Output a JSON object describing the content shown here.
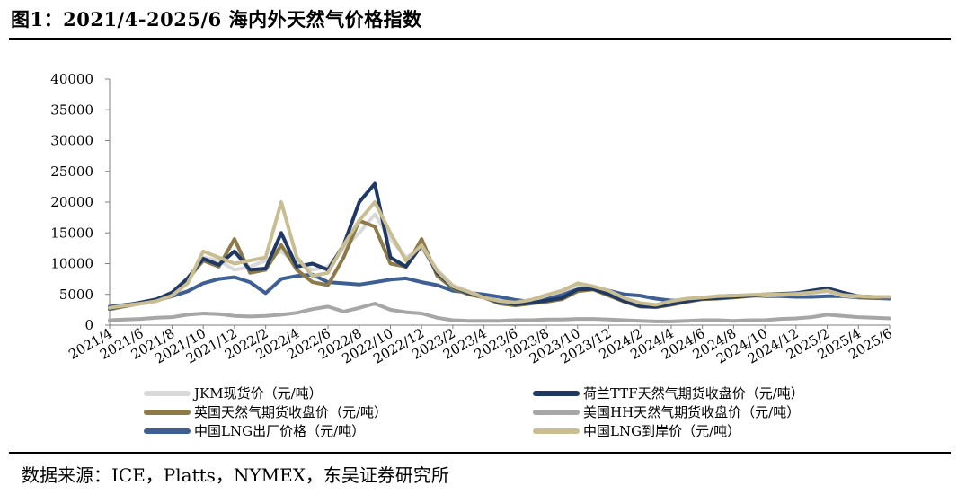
{
  "header": {
    "title": "图1：2021/4-2025/6 海内外天然气价格指数"
  },
  "footer": {
    "source": "数据来源：ICE，Platts，NYMEX，东吴证券研究所"
  },
  "colors": {
    "jkm": "#d9d9d9",
    "ttf": "#1f3864",
    "nbp": "#8c7b48",
    "hh": "#a6a6a6",
    "lng_ex": "#3e5f93",
    "lng_import": "#c9bd92"
  },
  "chart_data": {
    "type": "line",
    "ylim": [
      0,
      40000
    ],
    "yticks": [
      "0",
      "5000",
      "10000",
      "15000",
      "20000",
      "25000",
      "30000",
      "35000",
      "40000"
    ],
    "xticks": [
      "2021/4",
      "2021/6",
      "2021/8",
      "2021/10",
      "2021/12",
      "2022/2",
      "2022/4",
      "2022/6",
      "2022/8",
      "2022/10",
      "2022/12",
      "2023/2",
      "2023/4",
      "2023/6",
      "2023/8",
      "2023/10",
      "2023/12",
      "2024/2",
      "2024/4",
      "2024/6",
      "2024/8",
      "2024/10",
      "2024/12",
      "2025/2",
      "2025/4",
      "2025/6"
    ],
    "x": [
      "2021/4",
      "2021/5",
      "2021/6",
      "2021/7",
      "2021/8",
      "2021/9",
      "2021/10",
      "2021/11",
      "2021/12",
      "2022/1",
      "2022/2",
      "2022/3",
      "2022/4",
      "2022/5",
      "2022/6",
      "2022/7",
      "2022/8",
      "2022/9",
      "2022/10",
      "2022/11",
      "2022/12",
      "2023/1",
      "2023/2",
      "2023/3",
      "2023/4",
      "2023/5",
      "2023/6",
      "2023/7",
      "2023/8",
      "2023/9",
      "2023/10",
      "2023/11",
      "2023/12",
      "2024/1",
      "2024/2",
      "2024/3",
      "2024/4",
      "2024/5",
      "2024/6",
      "2024/7",
      "2024/8",
      "2024/9",
      "2024/10",
      "2024/11",
      "2024/12",
      "2025/1",
      "2025/2",
      "2025/3",
      "2025/4",
      "2025/5",
      "2025/6"
    ],
    "series": [
      {
        "key": "lng_ex",
        "name": "中国LNG出厂价格（元/吨）",
        "values": [
          3000,
          3300,
          3600,
          4000,
          4700,
          5500,
          6800,
          7500,
          7800,
          7000,
          5200,
          7500,
          8000,
          8200,
          7000,
          6800,
          6600,
          7000,
          7400,
          7600,
          7000,
          6500,
          5600,
          5300,
          5000,
          4600,
          4100,
          3800,
          4300,
          5000,
          5800,
          6100,
          5600,
          5000,
          4800,
          4300,
          4000,
          4100,
          4400,
          4700,
          4800,
          4800,
          4700,
          4700,
          4600,
          4600,
          4700,
          4700,
          4500,
          4400,
          4300
        ]
      },
      {
        "key": "hh",
        "name": "美国HH天然气期货收盘价（元/吨）",
        "values": [
          800,
          900,
          1000,
          1200,
          1300,
          1700,
          1900,
          1800,
          1500,
          1400,
          1500,
          1700,
          2000,
          2600,
          3000,
          2200,
          2800,
          3500,
          2500,
          2100,
          1900,
          1200,
          800,
          700,
          700,
          700,
          800,
          800,
          900,
          900,
          1000,
          1000,
          900,
          800,
          700,
          600,
          600,
          700,
          800,
          800,
          700,
          800,
          800,
          1000,
          1100,
          1300,
          1700,
          1500,
          1300,
          1200,
          1100
        ]
      },
      {
        "key": "jkm",
        "name": "JKM现货价（元/吨）",
        "values": [
          2500,
          3000,
          3500,
          4000,
          5000,
          7000,
          11000,
          10500,
          9000,
          9500,
          10500,
          12000,
          10000,
          9000,
          9500,
          12500,
          15000,
          18000,
          14000,
          11000,
          12500,
          9000,
          6500,
          5500,
          4500,
          3800,
          3600,
          4000,
          4800,
          5500,
          6500,
          6200,
          5500,
          4300,
          3500,
          3200,
          3800,
          4200,
          4500,
          4600,
          4600,
          4700,
          4800,
          4900,
          5000,
          5200,
          5500,
          4800,
          4600,
          4600,
          4500
        ]
      },
      {
        "key": "nbp",
        "name": "英国天然气期货收盘价（元/吨）",
        "values": [
          2600,
          3100,
          3600,
          4100,
          5200,
          7500,
          10500,
          9500,
          14000,
          8500,
          9000,
          13000,
          9000,
          7000,
          6500,
          11000,
          17000,
          16000,
          10000,
          9500,
          14000,
          8000,
          6000,
          5000,
          4500,
          3500,
          3200,
          3500,
          3800,
          4200,
          5500,
          5800,
          4800,
          3800,
          3000,
          2900,
          3300,
          3800,
          4200,
          4300,
          4500,
          4700,
          4900,
          5000,
          5100,
          5500,
          5900,
          5200,
          4600,
          4500,
          4400
        ]
      },
      {
        "key": "ttf",
        "name": "荷兰TTF天然气期货收盘价（元/吨）",
        "values": [
          2700,
          3200,
          3700,
          4200,
          5300,
          7600,
          10800,
          9800,
          12000,
          9000,
          9200,
          15000,
          9500,
          10000,
          9000,
          13000,
          20000,
          23000,
          11000,
          9500,
          13000,
          8500,
          6200,
          5200,
          4600,
          3700,
          3400,
          3600,
          4000,
          4400,
          5800,
          5900,
          5000,
          3900,
          3100,
          3000,
          3400,
          3900,
          4300,
          4400,
          4600,
          4800,
          5000,
          5100,
          5200,
          5600,
          6000,
          5300,
          4700,
          4600,
          4500
        ]
      },
      {
        "key": "lng_import",
        "name": "中国LNG到岸价（元/吨）",
        "values": [
          2800,
          3200,
          3500,
          3900,
          4800,
          6800,
          12000,
          11000,
          10000,
          10500,
          11000,
          20000,
          11000,
          8000,
          8500,
          13000,
          17000,
          20000,
          15000,
          10500,
          13000,
          8800,
          6300,
          5400,
          4500,
          3900,
          3700,
          4100,
          4900,
          5600,
          6800,
          6300,
          5600,
          4400,
          3600,
          3300,
          3900,
          4300,
          4500,
          4700,
          4800,
          4900,
          5000,
          5000,
          5100,
          5300,
          5600,
          4900,
          4700,
          4600,
          4600
        ]
      }
    ],
    "legend": [
      {
        "key": "jkm",
        "label": "JKM现货价（元/吨）"
      },
      {
        "key": "ttf",
        "label": "荷兰TTF天然气期货收盘价（元/吨）"
      },
      {
        "key": "nbp",
        "label": "英国天然气期货收盘价（元/吨）"
      },
      {
        "key": "hh",
        "label": "美国HH天然气期货收盘价（元/吨）"
      },
      {
        "key": "lng_ex",
        "label": "中国LNG出厂价格（元/吨）"
      },
      {
        "key": "lng_import",
        "label": "中国LNG到岸价（元/吨）"
      }
    ],
    "legend_position": "bottom"
  }
}
